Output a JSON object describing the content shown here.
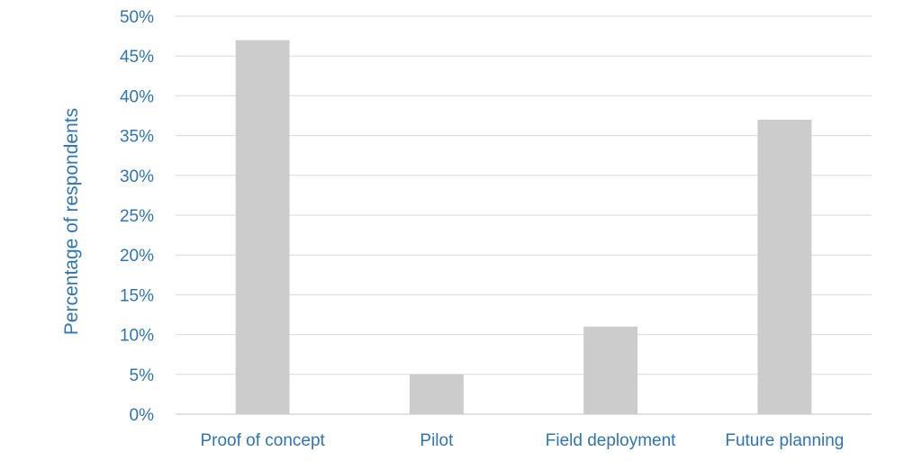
{
  "colors": {
    "bar": "#cccccc",
    "grid": "#d9d9d9",
    "axis_text": "#2e75b6"
  },
  "chart_data": {
    "type": "bar",
    "title": "",
    "xlabel": "",
    "ylabel": "Percentage of respondents",
    "categories": [
      "Proof of concept",
      "Pilot",
      "Field deployment",
      "Future planning"
    ],
    "series": [
      {
        "values": [
          47,
          5,
          11,
          37
        ]
      }
    ],
    "ylim": [
      0,
      50
    ],
    "yticks": [
      "0%",
      "5%",
      "10%",
      "15%",
      "20%",
      "25%",
      "30%",
      "35%",
      "40%",
      "45%",
      "50%"
    ],
    "grid": true,
    "legend": "none"
  }
}
